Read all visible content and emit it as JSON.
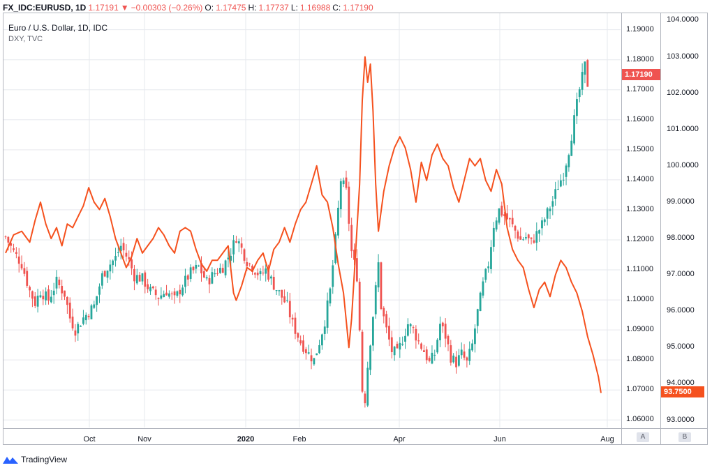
{
  "header": {
    "symbol": "FX_IDC:EURUSD, 1D",
    "last": "1.17191",
    "change": "−0.00303 (−0.26%)",
    "o_label": "O:",
    "o": "1.17475",
    "h_label": "H:",
    "h": "1.17737",
    "l_label": "L:",
    "l": "1.16988",
    "c_label": "C:",
    "c": "1.17190"
  },
  "legend": {
    "main": "Euro / U.S. Dollar, 1D, IDC",
    "overlay": "DXY, TVC"
  },
  "footer": {
    "brand": "TradingView"
  },
  "scale_buttons": [
    "A",
    "B"
  ],
  "colors": {
    "up": "#26a69a",
    "down": "#ef5350",
    "overlay": "#f5511e",
    "grid": "#e6e8ee"
  },
  "chart_data": [
    {
      "type": "candlestick",
      "name": "EURUSD",
      "x_ticks": [
        "Oct",
        "Nov",
        "2020",
        "Feb",
        "Apr",
        "Jun",
        "Aug"
      ],
      "y_ticks": [
        1.19,
        1.18,
        1.17,
        1.16,
        1.15,
        1.14,
        1.13,
        1.12,
        1.11,
        1.1,
        1.09,
        1.08,
        1.07,
        1.06
      ],
      "y_tick_labels": [
        "1.19000",
        "1.18000",
        "1.17000",
        "1.16000",
        "1.15000",
        "1.14000",
        "1.13000",
        "1.12000",
        "1.11000",
        "1.10000",
        "1.09000",
        "1.08000",
        "1.07000",
        "1.06000"
      ],
      "ylim": [
        1.0575,
        1.1955
      ],
      "last_price_label": "1.17190",
      "close_path": [
        [
          0,
          1.121
        ],
        [
          3,
          1.116
        ],
        [
          6,
          1.112
        ],
        [
          9,
          1.103
        ],
        [
          11,
          1.099
        ],
        [
          13,
          1.103
        ],
        [
          16,
          1.1
        ],
        [
          19,
          1.106
        ],
        [
          22,
          1.102
        ],
        [
          24,
          1.094
        ],
        [
          26,
          1.09
        ],
        [
          29,
          1.094
        ],
        [
          33,
          1.098
        ],
        [
          36,
          1.108
        ],
        [
          38,
          1.111
        ],
        [
          41,
          1.114
        ],
        [
          43,
          1.118
        ],
        [
          46,
          1.113
        ],
        [
          48,
          1.108
        ],
        [
          51,
          1.107
        ],
        [
          54,
          1.103
        ],
        [
          57,
          1.101
        ],
        [
          60,
          1.103
        ],
        [
          63,
          1.1
        ],
        [
          66,
          1.105
        ],
        [
          69,
          1.109
        ],
        [
          72,
          1.111
        ],
        [
          75,
          1.106
        ],
        [
          78,
          1.109
        ],
        [
          81,
          1.111
        ],
        [
          84,
          1.116
        ],
        [
          86,
          1.121
        ],
        [
          88,
          1.117
        ],
        [
          90,
          1.113
        ],
        [
          92,
          1.111
        ],
        [
          95,
          1.108
        ],
        [
          97,
          1.11
        ],
        [
          100,
          1.105
        ],
        [
          103,
          1.101
        ],
        [
          105,
          1.098
        ],
        [
          107,
          1.092
        ],
        [
          110,
          1.086
        ],
        [
          113,
          1.082
        ],
        [
          115,
          1.08
        ],
        [
          117,
          1.086
        ],
        [
          119,
          1.093
        ],
        [
          121,
          1.103
        ],
        [
          123,
          1.12
        ],
        [
          125,
          1.14
        ],
        [
          127,
          1.136
        ],
        [
          129,
          1.116
        ],
        [
          131,
          1.108
        ],
        [
          132,
          1.09
        ],
        [
          133,
          1.07
        ],
        [
          134,
          1.067
        ],
        [
          135,
          1.078
        ],
        [
          137,
          1.095
        ],
        [
          139,
          1.112
        ],
        [
          140,
          1.098
        ],
        [
          142,
          1.09
        ],
        [
          144,
          1.083
        ],
        [
          146,
          1.082
        ],
        [
          148,
          1.087
        ],
        [
          150,
          1.092
        ],
        [
          152,
          1.09
        ],
        [
          154,
          1.086
        ],
        [
          156,
          1.083
        ],
        [
          158,
          1.079
        ],
        [
          160,
          1.082
        ],
        [
          162,
          1.092
        ],
        [
          164,
          1.088
        ],
        [
          166,
          1.081
        ],
        [
          168,
          1.079
        ],
        [
          170,
          1.082
        ],
        [
          172,
          1.079
        ],
        [
          174,
          1.085
        ],
        [
          176,
          1.096
        ],
        [
          178,
          1.105
        ],
        [
          180,
          1.112
        ],
        [
          182,
          1.125
        ],
        [
          184,
          1.13
        ],
        [
          186,
          1.128
        ],
        [
          188,
          1.126
        ],
        [
          190,
          1.123
        ],
        [
          192,
          1.12
        ],
        [
          194,
          1.121
        ],
        [
          196,
          1.119
        ],
        [
          198,
          1.122
        ],
        [
          200,
          1.125
        ],
        [
          202,
          1.129
        ],
        [
          204,
          1.133
        ],
        [
          206,
          1.138
        ],
        [
          208,
          1.142
        ],
        [
          210,
          1.15
        ],
        [
          212,
          1.16
        ],
        [
          214,
          1.17
        ],
        [
          216,
          1.178
        ],
        [
          217,
          1.172
        ]
      ]
    },
    {
      "type": "line",
      "name": "DXY",
      "y_ticks": [
        104,
        103,
        102,
        101,
        100,
        99,
        98,
        97,
        96,
        95,
        94,
        93
      ],
      "y_tick_labels": [
        "104.0000",
        "103.0000",
        "102.0000",
        "101.0000",
        "100.0000",
        "99.0000",
        "98.0000",
        "97.0000",
        "96.0000",
        "95.0000",
        "94.0000",
        "93.0000"
      ],
      "ylim": [
        92.8,
        104.2
      ],
      "last_price_label": "93.7500",
      "points": [
        [
          0,
          97.6
        ],
        [
          3,
          98.1
        ],
        [
          6,
          98.2
        ],
        [
          9,
          97.9
        ],
        [
          11,
          98.5
        ],
        [
          13,
          99.0
        ],
        [
          15,
          98.4
        ],
        [
          17,
          98.0
        ],
        [
          19,
          98.3
        ],
        [
          21,
          97.8
        ],
        [
          23,
          98.4
        ],
        [
          25,
          98.3
        ],
        [
          27,
          98.6
        ],
        [
          29,
          98.9
        ],
        [
          31,
          99.4
        ],
        [
          33,
          99.0
        ],
        [
          35,
          98.8
        ],
        [
          37,
          99.1
        ],
        [
          39,
          98.6
        ],
        [
          41,
          98.0
        ],
        [
          43,
          97.6
        ],
        [
          45,
          97.2
        ],
        [
          47,
          97.5
        ],
        [
          49,
          98.0
        ],
        [
          51,
          97.6
        ],
        [
          53,
          97.8
        ],
        [
          55,
          98.0
        ],
        [
          57,
          98.3
        ],
        [
          59,
          98.1
        ],
        [
          61,
          97.8
        ],
        [
          63,
          97.6
        ],
        [
          65,
          98.2
        ],
        [
          67,
          98.3
        ],
        [
          69,
          98.2
        ],
        [
          71,
          97.7
        ],
        [
          73,
          97.3
        ],
        [
          75,
          97.1
        ],
        [
          77,
          97.4
        ],
        [
          79,
          97.4
        ],
        [
          81,
          97.6
        ],
        [
          83,
          97.8
        ],
        [
          85,
          96.5
        ],
        [
          86,
          96.3
        ],
        [
          88,
          96.7
        ],
        [
          90,
          97.2
        ],
        [
          92,
          97.1
        ],
        [
          94,
          97.4
        ],
        [
          96,
          97.6
        ],
        [
          98,
          97.1
        ],
        [
          100,
          97.7
        ],
        [
          102,
          97.9
        ],
        [
          104,
          98.3
        ],
        [
          106,
          97.9
        ],
        [
          108,
          98.4
        ],
        [
          110,
          98.8
        ],
        [
          112,
          99.0
        ],
        [
          114,
          99.5
        ],
        [
          116,
          100.0
        ],
        [
          118,
          99.2
        ],
        [
          120,
          99.0
        ],
        [
          122,
          98.3
        ],
        [
          124,
          97.3
        ],
        [
          126,
          96.5
        ],
        [
          128,
          95.0
        ],
        [
          129,
          95.8
        ],
        [
          130,
          97.0
        ],
        [
          132,
          99.5
        ],
        [
          133,
          101.8
        ],
        [
          134,
          103.0
        ],
        [
          135,
          102.3
        ],
        [
          136,
          102.8
        ],
        [
          137,
          101.5
        ],
        [
          138,
          99.5
        ],
        [
          139,
          98.2
        ],
        [
          141,
          99.3
        ],
        [
          143,
          100.0
        ],
        [
          145,
          100.5
        ],
        [
          147,
          100.8
        ],
        [
          149,
          100.5
        ],
        [
          151,
          99.9
        ],
        [
          153,
          99.0
        ],
        [
          155,
          100.1
        ],
        [
          157,
          99.6
        ],
        [
          159,
          100.3
        ],
        [
          161,
          100.6
        ],
        [
          163,
          100.2
        ],
        [
          165,
          100.0
        ],
        [
          167,
          99.4
        ],
        [
          169,
          99.0
        ],
        [
          171,
          99.6
        ],
        [
          173,
          100.2
        ],
        [
          175,
          100.0
        ],
        [
          177,
          100.2
        ],
        [
          179,
          99.6
        ],
        [
          181,
          99.3
        ],
        [
          183,
          99.9
        ],
        [
          185,
          99.5
        ],
        [
          187,
          98.3
        ],
        [
          189,
          97.7
        ],
        [
          191,
          97.4
        ],
        [
          193,
          97.2
        ],
        [
          195,
          96.6
        ],
        [
          197,
          96.1
        ],
        [
          199,
          96.6
        ],
        [
          201,
          96.8
        ],
        [
          203,
          96.4
        ],
        [
          205,
          97.0
        ],
        [
          207,
          97.4
        ],
        [
          209,
          97.2
        ],
        [
          211,
          96.8
        ],
        [
          213,
          96.5
        ],
        [
          215,
          96.0
        ],
        [
          217,
          95.3
        ],
        [
          219,
          94.8
        ],
        [
          221,
          94.2
        ],
        [
          222,
          93.75
        ]
      ]
    }
  ]
}
